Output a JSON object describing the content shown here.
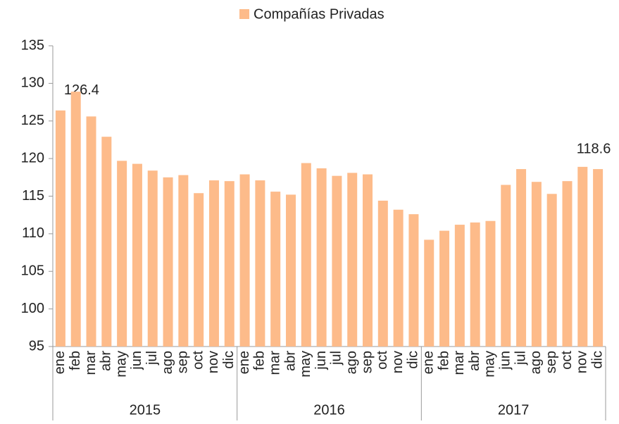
{
  "chart_data": {
    "type": "bar",
    "categories": [
      "ene",
      "feb",
      "mar",
      "abr",
      "may",
      "jun",
      "jul",
      "ago",
      "sep",
      "oct",
      "nov",
      "dic",
      "ene",
      "feb",
      "mar",
      "abr",
      "may",
      "jun",
      "jul",
      "ago",
      "sep",
      "oct",
      "nov",
      "dic",
      "ene",
      "feb",
      "mar",
      "abr",
      "may",
      "jun",
      "jul",
      "ago",
      "sep",
      "oct",
      "nov",
      "dic"
    ],
    "groups": [
      "2015",
      "2016",
      "2017"
    ],
    "series": [
      {
        "name": "Compañías Privadas",
        "color": "#fdbb8a",
        "values": [
          126.4,
          128.9,
          125.6,
          122.9,
          119.7,
          119.3,
          118.4,
          117.5,
          117.8,
          115.4,
          117.1,
          117.0,
          117.9,
          117.1,
          115.6,
          115.2,
          119.4,
          118.7,
          117.7,
          118.1,
          117.9,
          114.4,
          113.2,
          112.6,
          109.2,
          110.4,
          111.2,
          111.5,
          111.7,
          116.5,
          118.6,
          116.9,
          115.3,
          117.0,
          118.9,
          118.6
        ],
        "value_labels": [
          "126.4",
          null,
          null,
          null,
          null,
          null,
          null,
          null,
          null,
          null,
          null,
          null,
          null,
          null,
          null,
          null,
          null,
          null,
          null,
          null,
          null,
          null,
          null,
          null,
          null,
          null,
          null,
          null,
          null,
          null,
          null,
          null,
          null,
          null,
          null,
          "118.6"
        ]
      }
    ],
    "ylim": [
      95,
      135
    ],
    "yticks": [
      95,
      100,
      105,
      110,
      115,
      120,
      125,
      130,
      135
    ]
  }
}
